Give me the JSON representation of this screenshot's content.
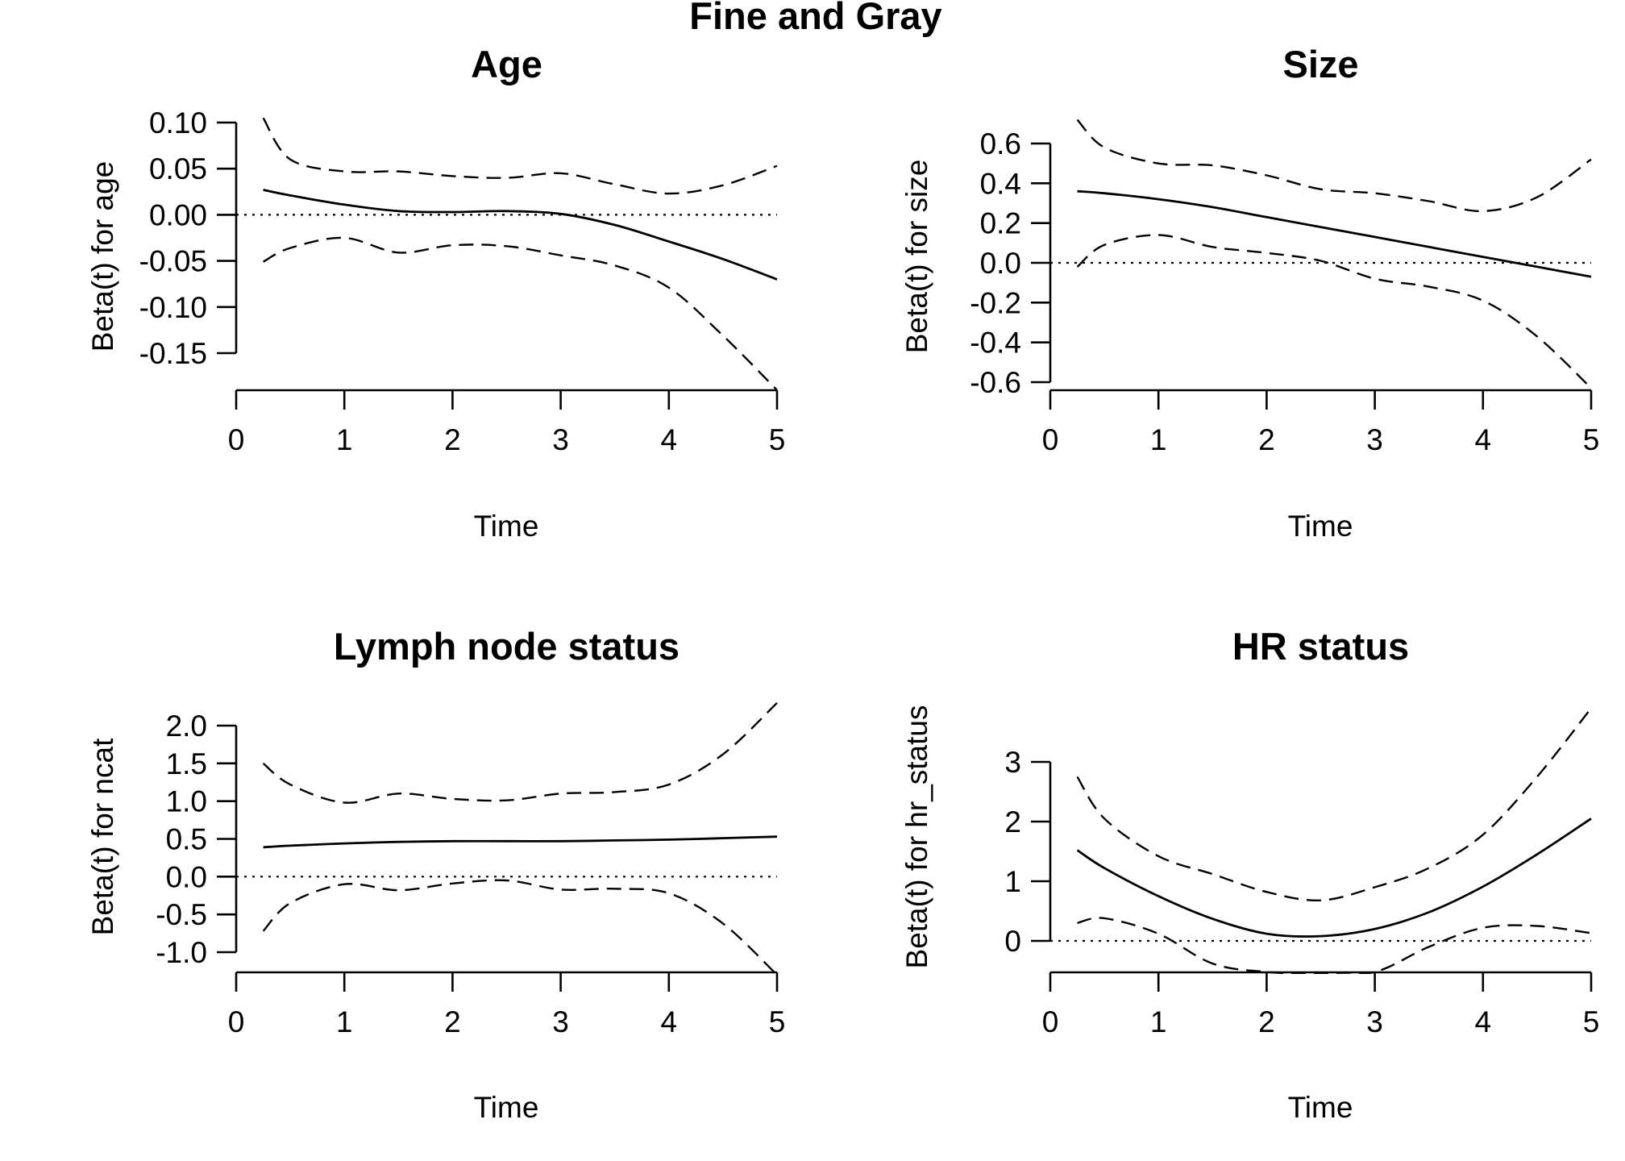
{
  "figure": {
    "title": "Fine and Gray"
  },
  "chart_data": [
    {
      "type": "line",
      "title": "Age",
      "xlabel": "Time",
      "ylabel": "Beta(t) for age",
      "xlim": [
        0,
        5
      ],
      "ylim": [
        -0.19,
        0.105
      ],
      "xticks": [
        0,
        1,
        2,
        3,
        4,
        5
      ],
      "xtick_labels": [
        "0",
        "1",
        "2",
        "3",
        "4",
        "5"
      ],
      "yticks": [
        0.1,
        0.05,
        0.0,
        -0.05,
        -0.1,
        -0.15
      ],
      "ytick_labels": [
        "0.10",
        "0.05",
        "0.00",
        "-0.05",
        "-0.10",
        "-0.15"
      ],
      "reference_y": 0,
      "x": [
        0.25,
        0.5,
        1.0,
        1.5,
        2.0,
        2.5,
        3.0,
        3.5,
        4.0,
        4.5,
        5.0
      ],
      "series": [
        {
          "role": "estimate",
          "style": "solid",
          "values": [
            0.027,
            0.021,
            0.011,
            0.004,
            0.003,
            0.004,
            0.001,
            -0.011,
            -0.029,
            -0.048,
            -0.07
          ]
        },
        {
          "role": "upper",
          "style": "dashed",
          "values": [
            0.105,
            0.06,
            0.047,
            0.047,
            0.042,
            0.04,
            0.045,
            0.033,
            0.023,
            0.032,
            0.053
          ]
        },
        {
          "role": "lower",
          "style": "dashed",
          "values": [
            -0.051,
            -0.036,
            -0.025,
            -0.041,
            -0.033,
            -0.034,
            -0.044,
            -0.055,
            -0.079,
            -0.131,
            -0.19
          ]
        }
      ]
    },
    {
      "type": "line",
      "title": "Size",
      "xlabel": "Time",
      "ylabel": "Beta(t) for size",
      "xlim": [
        0,
        5
      ],
      "ylim": [
        -0.65,
        0.72
      ],
      "xticks": [
        0,
        1,
        2,
        3,
        4,
        5
      ],
      "xtick_labels": [
        "0",
        "1",
        "2",
        "3",
        "4",
        "5"
      ],
      "yticks": [
        0.6,
        0.4,
        0.2,
        0.0,
        -0.2,
        -0.4,
        -0.6
      ],
      "ytick_labels": [
        "0.6",
        "0.4",
        "0.2",
        "0.0",
        "-0.2",
        "-0.4",
        "-0.6"
      ],
      "reference_y": 0,
      "x": [
        0.25,
        0.5,
        1.0,
        1.5,
        2.0,
        2.5,
        3.0,
        3.5,
        4.0,
        4.5,
        5.0
      ],
      "series": [
        {
          "role": "estimate",
          "style": "solid",
          "values": [
            0.36,
            0.35,
            0.32,
            0.28,
            0.23,
            0.18,
            0.13,
            0.08,
            0.03,
            -0.02,
            -0.07
          ]
        },
        {
          "role": "upper",
          "style": "dashed",
          "values": [
            0.72,
            0.58,
            0.5,
            0.49,
            0.44,
            0.37,
            0.35,
            0.31,
            0.26,
            0.33,
            0.52
          ]
        },
        {
          "role": "lower",
          "style": "dashed",
          "values": [
            -0.02,
            0.09,
            0.14,
            0.08,
            0.05,
            0.01,
            -0.08,
            -0.12,
            -0.19,
            -0.37,
            -0.63
          ]
        }
      ]
    },
    {
      "type": "line",
      "title": "Lymph node status",
      "xlabel": "Time",
      "ylabel": "Beta(t) for ncat",
      "xlim": [
        0,
        5
      ],
      "ylim": [
        -1.3,
        2.3
      ],
      "xticks": [
        0,
        1,
        2,
        3,
        4,
        5
      ],
      "xtick_labels": [
        "0",
        "1",
        "2",
        "3",
        "4",
        "5"
      ],
      "yticks": [
        2.0,
        1.5,
        1.0,
        0.5,
        0.0,
        -0.5,
        -1.0
      ],
      "ytick_labels": [
        "2.0",
        "1.5",
        "1.0",
        "0.5",
        "0.0",
        "-0.5",
        "-1.0"
      ],
      "reference_y": 0,
      "x": [
        0.25,
        0.5,
        1.0,
        1.5,
        2.0,
        2.5,
        3.0,
        3.5,
        4.0,
        4.5,
        5.0
      ],
      "series": [
        {
          "role": "estimate",
          "style": "solid",
          "values": [
            0.39,
            0.41,
            0.44,
            0.46,
            0.47,
            0.47,
            0.47,
            0.48,
            0.49,
            0.51,
            0.53
          ]
        },
        {
          "role": "upper",
          "style": "dashed",
          "values": [
            1.5,
            1.22,
            0.98,
            1.1,
            1.03,
            1.01,
            1.1,
            1.12,
            1.22,
            1.62,
            2.3
          ]
        },
        {
          "role": "lower",
          "style": "dashed",
          "values": [
            -0.72,
            -0.35,
            -0.1,
            -0.18,
            -0.09,
            -0.05,
            -0.17,
            -0.16,
            -0.22,
            -0.62,
            -1.3
          ]
        }
      ]
    },
    {
      "type": "line",
      "title": "HR status",
      "xlabel": "Time",
      "ylabel": "Beta(t) for hr_status",
      "xlim": [
        0,
        5
      ],
      "ylim": [
        -0.5,
        3.9
      ],
      "xticks": [
        0,
        1,
        2,
        3,
        4,
        5
      ],
      "xtick_labels": [
        "0",
        "1",
        "2",
        "3",
        "4",
        "5"
      ],
      "yticks": [
        3,
        2,
        1,
        0
      ],
      "ytick_labels": [
        "3",
        "2",
        "1",
        "0"
      ],
      "reference_y": 0,
      "x": [
        0.25,
        0.5,
        1.0,
        1.5,
        2.0,
        2.5,
        3.0,
        3.5,
        4.0,
        4.5,
        5.0
      ],
      "series": [
        {
          "role": "estimate",
          "style": "solid",
          "values": [
            1.52,
            1.22,
            0.75,
            0.37,
            0.12,
            0.08,
            0.2,
            0.48,
            0.91,
            1.45,
            2.05
          ]
        },
        {
          "role": "upper",
          "style": "dashed",
          "values": [
            2.75,
            2.05,
            1.42,
            1.12,
            0.82,
            0.68,
            0.9,
            1.22,
            1.78,
            2.75,
            3.9
          ]
        },
        {
          "role": "lower",
          "style": "dashed",
          "values": [
            0.3,
            0.38,
            0.12,
            -0.38,
            -0.52,
            -0.55,
            -0.52,
            -0.1,
            0.22,
            0.25,
            0.13
          ]
        }
      ]
    }
  ]
}
